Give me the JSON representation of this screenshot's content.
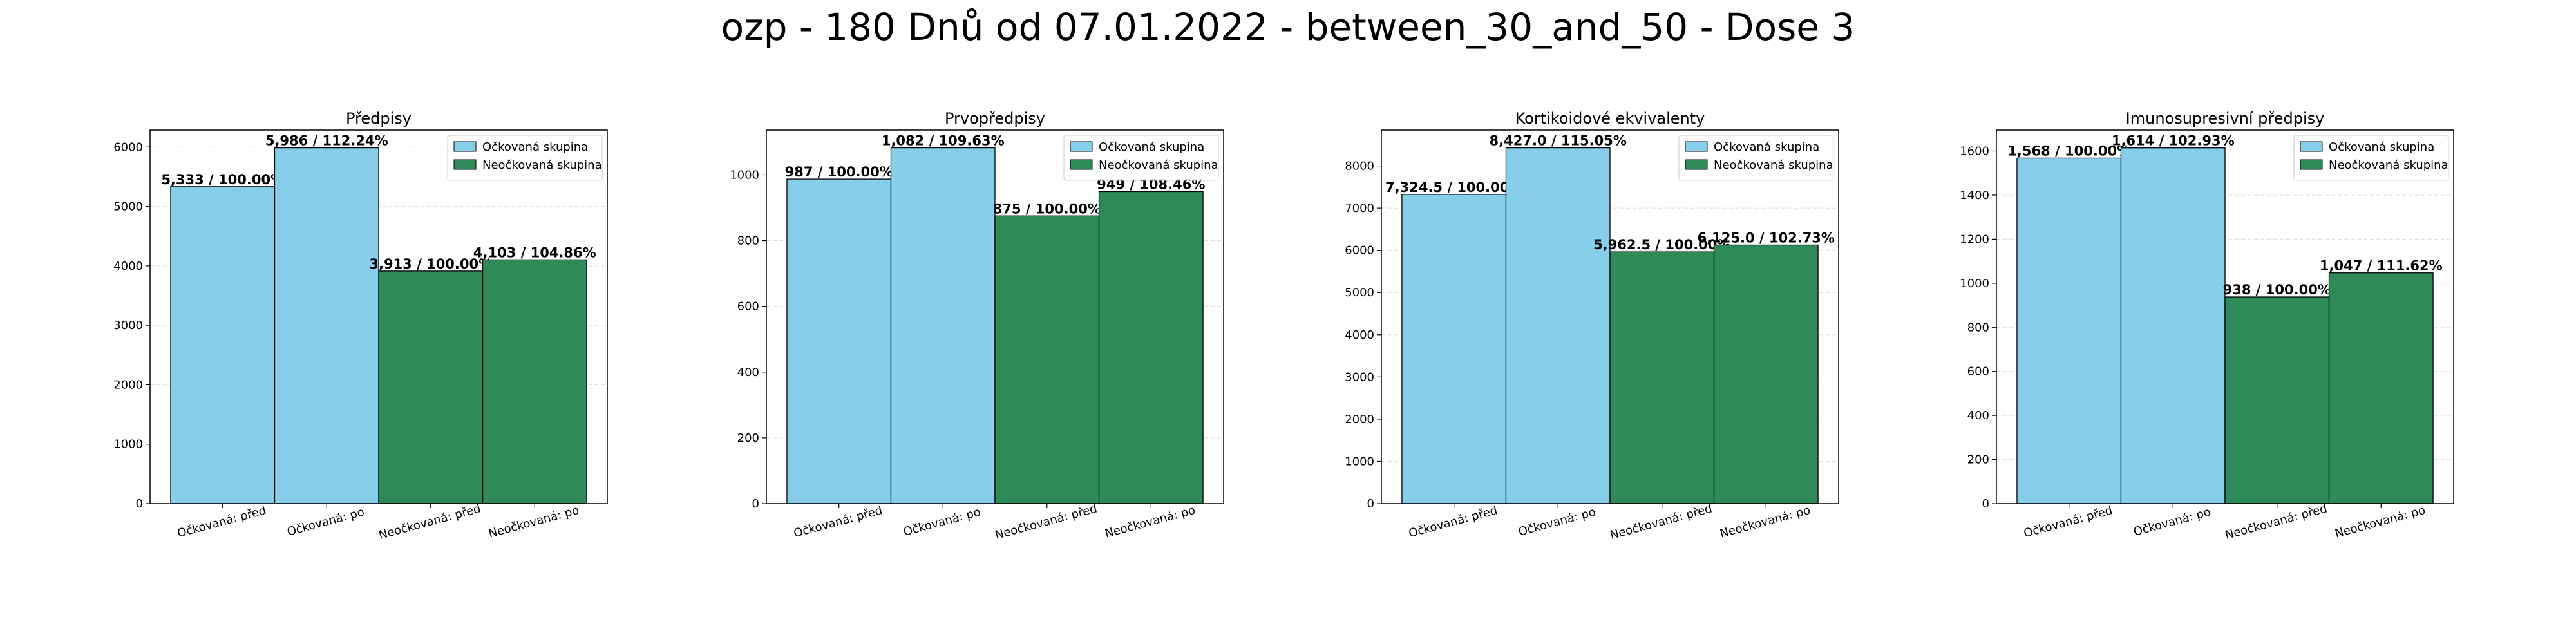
{
  "figure": {
    "title": "ozp - 180 Dnů od 07.01.2022 - between_30_and_50 - Dose 3"
  },
  "colors": {
    "vaccinated": "#87ceeb",
    "unvaccinated": "#2e8b57"
  },
  "chart_data": [
    {
      "type": "bar",
      "title": "Předpisy",
      "categories": [
        "Očkovaná: před",
        "Očkovaná: po",
        "Neočkovaná: před",
        "Neočkovaná: po"
      ],
      "values": [
        5333,
        5986,
        3913,
        4103
      ],
      "labels": [
        "5,333 / 100.00%",
        "5,986 / 112.24%",
        "3,913 / 100.00%",
        "4,103 / 104.86%"
      ],
      "groups": [
        "vaccinated",
        "vaccinated",
        "unvaccinated",
        "unvaccinated"
      ],
      "legend": [
        "Očkovaná skupina",
        "Neočkovaná skupina"
      ],
      "legend_position": "top-right",
      "ylim": [
        0,
        6285
      ],
      "yticks": [
        0,
        1000,
        2000,
        3000,
        4000,
        5000,
        6000
      ],
      "grid": true
    },
    {
      "type": "bar",
      "title": "Prvopředpisy",
      "categories": [
        "Očkovaná: před",
        "Očkovaná: po",
        "Neočkovaná: před",
        "Neočkovaná: po"
      ],
      "values": [
        987,
        1082,
        875,
        949
      ],
      "labels": [
        "987 / 100.00%",
        "1,082 / 109.63%",
        "875 / 100.00%",
        "949 / 108.46%"
      ],
      "groups": [
        "vaccinated",
        "vaccinated",
        "unvaccinated",
        "unvaccinated"
      ],
      "legend": [
        "Očkovaná skupina",
        "Neočkovaná skupina"
      ],
      "legend_position": "top-right",
      "ylim": [
        0,
        1136
      ],
      "yticks": [
        0,
        200,
        400,
        600,
        800,
        1000
      ],
      "grid": true
    },
    {
      "type": "bar",
      "title": "Kortikoidové ekvivalenty",
      "categories": [
        "Očkovaná: před",
        "Očkovaná: po",
        "Neočkovaná: před",
        "Neočkovaná: po"
      ],
      "values": [
        7324.5,
        8427.0,
        5962.5,
        6125.0
      ],
      "labels": [
        "7,324.5 / 100.00%",
        "8,427.0 / 115.05%",
        "5,962.5 / 100.00%",
        "6,125.0 / 102.73%"
      ],
      "groups": [
        "vaccinated",
        "vaccinated",
        "unvaccinated",
        "unvaccinated"
      ],
      "legend": [
        "Očkovaná skupina",
        "Neočkovaná skupina"
      ],
      "legend_position": "top-right",
      "ylim": [
        0,
        8848
      ],
      "yticks": [
        0,
        1000,
        2000,
        3000,
        4000,
        5000,
        6000,
        7000,
        8000
      ],
      "grid": true
    },
    {
      "type": "bar",
      "title": "Imunosupresivní předpisy",
      "categories": [
        "Očkovaná: před",
        "Očkovaná: po",
        "Neočkovaná: před",
        "Neočkovaná: po"
      ],
      "values": [
        1568,
        1614,
        938,
        1047
      ],
      "labels": [
        "1,568 / 100.00%",
        "1,614 / 102.93%",
        "938 / 100.00%",
        "1,047 / 111.62%"
      ],
      "groups": [
        "vaccinated",
        "vaccinated",
        "unvaccinated",
        "unvaccinated"
      ],
      "legend": [
        "Očkovaná skupina",
        "Neočkovaná skupina"
      ],
      "legend_position": "top-right",
      "ylim": [
        0,
        1695
      ],
      "yticks": [
        0,
        200,
        400,
        600,
        800,
        1000,
        1200,
        1400,
        1600
      ],
      "grid": true
    }
  ]
}
